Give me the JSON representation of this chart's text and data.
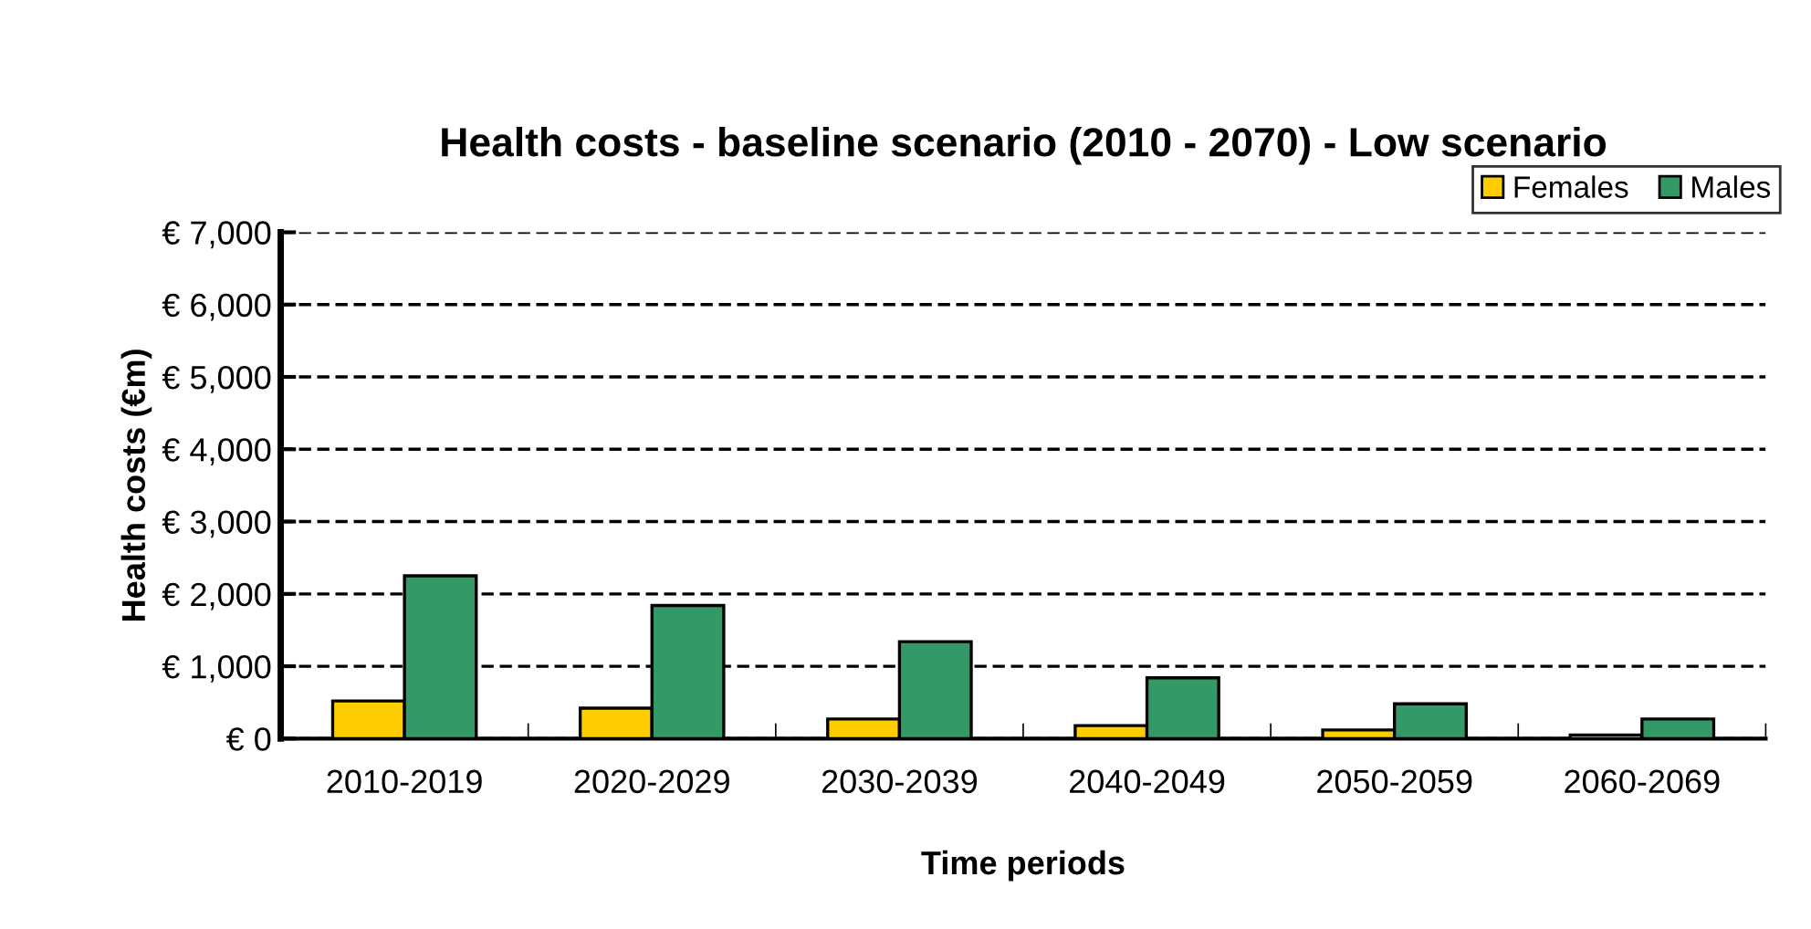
{
  "chart_data": {
    "type": "bar",
    "title": "Health costs - baseline scenario (2010 - 2070) - Low scenario",
    "xlabel": "Time periods",
    "ylabel": "Health costs (€m)",
    "categories": [
      "2010-2019",
      "2020-2029",
      "2030-2039",
      "2040-2049",
      "2050-2059",
      "2060-2069"
    ],
    "series": [
      {
        "name": "Females",
        "color": "#ffcc00",
        "values": [
          520,
          420,
          270,
          180,
          120,
          50
        ]
      },
      {
        "name": "Males",
        "color": "#339966",
        "values": [
          2250,
          1840,
          1340,
          840,
          480,
          270
        ]
      }
    ],
    "ylim": [
      0,
      7000
    ],
    "yticks": [
      {
        "value": 0,
        "label": "€ 0"
      },
      {
        "value": 1000,
        "label": "€ 1,000"
      },
      {
        "value": 2000,
        "label": "€ 2,000"
      },
      {
        "value": 3000,
        "label": "€ 3,000"
      },
      {
        "value": 4000,
        "label": "€ 4,000"
      },
      {
        "value": 5000,
        "label": "€ 5,000"
      },
      {
        "value": 6000,
        "label": "€ 6,000"
      },
      {
        "value": 7000,
        "label": "€ 7,000"
      }
    ],
    "grid": "y",
    "legend": "top right"
  }
}
